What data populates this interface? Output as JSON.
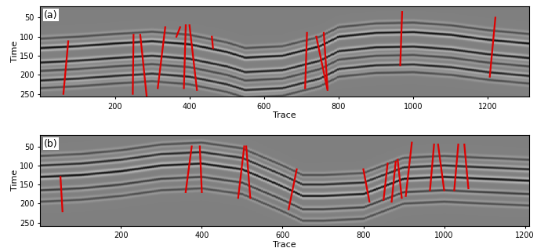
{
  "chart_data": [
    {
      "type": "seismic",
      "label": "(a)",
      "x_label": "Trace",
      "y_label": "Time",
      "xlim": [
        0,
        1310
      ],
      "ylim": [
        258,
        20
      ],
      "xticks": [
        200,
        400,
        600,
        800,
        1000,
        1200
      ],
      "yticks": [
        50,
        100,
        150,
        200,
        250
      ],
      "horizons": {
        "x": [
          0,
          100,
          200,
          300,
          400,
          500,
          550,
          650,
          750,
          800,
          900,
          1000,
          1100,
          1200,
          1310
        ],
        "series": [
          {
            "amplitude": 0.45,
            "values": [
              105,
              100,
              93,
              87,
              95,
              115,
              130,
              125,
              100,
              75,
              65,
              63,
              70,
              83,
              93
            ]
          },
          {
            "amplitude": 1.0,
            "values": [
              130,
              125,
              118,
              112,
              120,
              140,
              155,
              150,
              125,
              100,
              90,
              88,
              95,
              108,
              118
            ]
          },
          {
            "amplitude": 0.9,
            "values": [
              168,
              163,
              156,
              150,
              158,
              178,
              193,
              188,
              163,
              138,
              128,
              126,
              133,
              146,
              156
            ]
          },
          {
            "amplitude": 0.5,
            "values": [
              190,
              185,
              178,
              172,
              180,
              200,
              215,
              210,
              185,
              160,
              150,
              148,
              155,
              168,
              178
            ]
          },
          {
            "amplitude": 0.85,
            "values": [
              215,
              210,
              203,
              197,
              205,
              225,
              240,
              235,
              210,
              185,
              175,
              173,
              180,
              193,
              203
            ]
          },
          {
            "amplitude": 0.45,
            "values": [
              235,
              230,
              223,
              217,
              225,
              245,
              260,
              255,
              230,
              205,
              195,
              193,
              200,
              213,
              223
            ]
          }
        ]
      },
      "faults": {
        "color": "#e00000",
        "lines": [
          [
            [
              62,
              250
            ],
            [
              75,
              112
            ]
          ],
          [
            [
              248,
              250
            ],
            [
              250,
              95
            ]
          ],
          [
            [
              268,
              95
            ],
            [
              285,
              255
            ]
          ],
          [
            [
              315,
              235
            ],
            [
              335,
              75
            ]
          ],
          [
            [
              365,
              100
            ],
            [
              375,
              75
            ]
          ],
          [
            [
              385,
              235
            ],
            [
              390,
              70
            ]
          ],
          [
            [
              400,
              70
            ],
            [
              420,
              240
            ]
          ],
          [
            [
              460,
              100
            ],
            [
              463,
              130
            ]
          ],
          [
            [
              710,
              235
            ],
            [
              715,
              90
            ]
          ],
          [
            [
              740,
              100
            ],
            [
              770,
              240
            ]
          ],
          [
            [
              760,
              90
            ],
            [
              770,
              235
            ]
          ],
          [
            [
              965,
              175
            ],
            [
              970,
              35
            ]
          ],
          [
            [
              1205,
              205
            ],
            [
              1220,
              50
            ]
          ]
        ]
      }
    },
    {
      "type": "seismic",
      "label": "(b)",
      "x_label": "Trace",
      "y_label": "Time",
      "xlim": [
        0,
        1210
      ],
      "ylim": [
        258,
        20
      ],
      "xticks": [
        200,
        400,
        600,
        800,
        1000,
        1200
      ],
      "yticks": [
        50,
        100,
        150,
        200,
        250
      ],
      "horizons": {
        "x": [
          0,
          100,
          200,
          300,
          400,
          500,
          600,
          650,
          700,
          800,
          900,
          1000,
          1100,
          1210
        ],
        "series": [
          {
            "amplitude": 0.45,
            "values": [
              75,
              70,
              60,
              45,
              40,
              55,
              100,
              125,
              125,
              120,
              80,
              75,
              80,
              85
            ]
          },
          {
            "amplitude": 0.8,
            "values": [
              100,
              95,
              85,
              70,
              65,
              80,
              125,
              150,
              150,
              145,
              105,
              100,
              105,
              110
            ]
          },
          {
            "amplitude": 1.0,
            "values": [
              130,
              125,
              115,
              100,
              95,
              110,
              155,
              180,
              180,
              175,
              135,
              130,
              135,
              140
            ]
          },
          {
            "amplitude": 0.6,
            "values": [
              165,
              160,
              150,
              135,
              130,
              145,
              190,
              215,
              215,
              210,
              170,
              165,
              170,
              175
            ]
          },
          {
            "amplitude": 0.45,
            "values": [
              195,
              190,
              180,
              165,
              160,
              175,
              220,
              245,
              245,
              240,
              200,
              195,
              200,
              205
            ]
          }
        ]
      },
      "faults": {
        "color": "#e00000",
        "lines": [
          [
            [
              50,
              130
            ],
            [
              55,
              220
            ]
          ],
          [
            [
              360,
              170
            ],
            [
              375,
              50
            ]
          ],
          [
            [
              395,
              50
            ],
            [
              400,
              170
            ]
          ],
          [
            [
              490,
              185
            ],
            [
              505,
              50
            ]
          ],
          [
            [
              510,
              50
            ],
            [
              520,
              185
            ]
          ],
          [
            [
              615,
              215
            ],
            [
              635,
              110
            ]
          ],
          [
            [
              800,
              110
            ],
            [
              815,
              195
            ]
          ],
          [
            [
              850,
              190
            ],
            [
              860,
              95
            ]
          ],
          [
            [
              870,
              195
            ],
            [
              880,
              90
            ]
          ],
          [
            [
              885,
              85
            ],
            [
              895,
              185
            ]
          ],
          [
            [
              905,
              180
            ],
            [
              920,
              40
            ]
          ],
          [
            [
              965,
              165
            ],
            [
              975,
              45
            ]
          ],
          [
            [
              985,
              45
            ],
            [
              1000,
              165
            ]
          ],
          [
            [
              1025,
              165
            ],
            [
              1035,
              45
            ]
          ],
          [
            [
              1050,
              45
            ],
            [
              1060,
              160
            ]
          ]
        ]
      }
    }
  ]
}
